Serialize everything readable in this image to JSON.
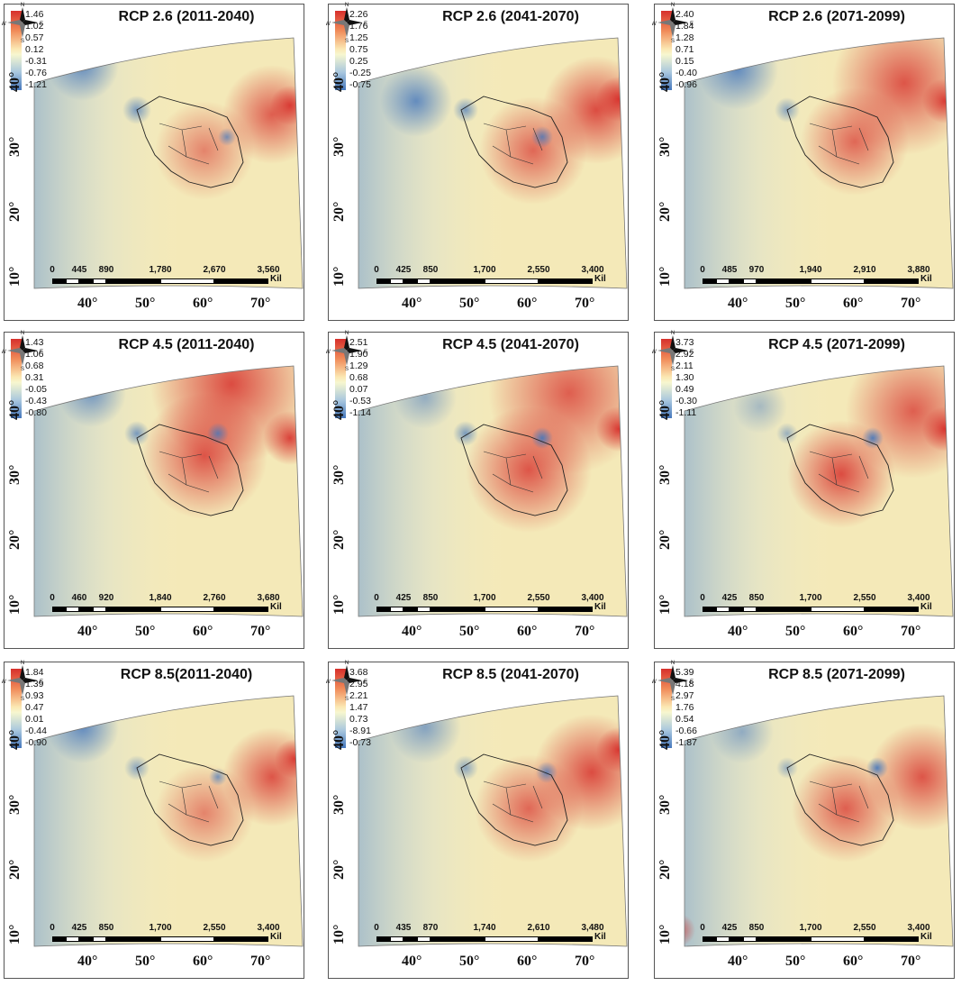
{
  "panels": [
    {
      "title": "RCP 2.6 (2011-2040)",
      "legend": [
        "1.46",
        "1.02",
        "0.57",
        "0.12",
        "-0.31",
        "-0.76",
        "-1.21"
      ],
      "scale": [
        "0",
        "445",
        "890",
        "1,780",
        "2,670",
        "3,560"
      ],
      "scale_unit": "Kil"
    },
    {
      "title": "RCP 2.6 (2041-2070)",
      "legend": [
        "2.26",
        "1.76",
        "1.25",
        "0.75",
        "0.25",
        "-0.25",
        "-0.75"
      ],
      "scale": [
        "0",
        "425",
        "850",
        "1,700",
        "2,550",
        "3,400"
      ],
      "scale_unit": "Kil"
    },
    {
      "title": "RCP 2.6 (2071-2099)",
      "legend": [
        "2.40",
        "1.84",
        "1.28",
        "0.71",
        "0.15",
        "-0.40",
        "-0.96"
      ],
      "scale": [
        "0",
        "485",
        "970",
        "1,940",
        "2,910",
        "3,880"
      ],
      "scale_unit": "Kil"
    },
    {
      "title": "RCP 4.5 (2011-2040)",
      "legend": [
        "1.43",
        "1.06",
        "0.68",
        "0.31",
        "-0.05",
        "-0.43",
        "-0.80"
      ],
      "scale": [
        "0",
        "460",
        "920",
        "1,840",
        "2,760",
        "3,680"
      ],
      "scale_unit": "Kil"
    },
    {
      "title": "RCP 4.5 (2041-2070)",
      "legend": [
        "2.51",
        "1.90",
        "1.29",
        "0.68",
        "0.07",
        "-0.53",
        "-1.14"
      ],
      "scale": [
        "0",
        "425",
        "850",
        "1,700",
        "2,550",
        "3,400"
      ],
      "scale_unit": "Kil"
    },
    {
      "title": "RCP 4.5 (2071-2099)",
      "legend": [
        "3.73",
        "2.92",
        "2.11",
        "1.30",
        "0.49",
        "-0.30",
        "-1.11"
      ],
      "scale": [
        "0",
        "425",
        "850",
        "1,700",
        "2,550",
        "3,400"
      ],
      "scale_unit": "Kil"
    },
    {
      "title": "RCP 8.5(2011-2040)",
      "legend": [
        "1.84",
        "1.39",
        "0.93",
        "0.47",
        "0.01",
        "-0.44",
        "-0.90"
      ],
      "scale": [
        "0",
        "425",
        "850",
        "1,700",
        "2,550",
        "3,400"
      ],
      "scale_unit": "Kil"
    },
    {
      "title": "RCP 8.5 (2041-2070)",
      "legend": [
        "3.68",
        "2.95",
        "2.21",
        "1.47",
        "0.73",
        "-8.91",
        "-0.73"
      ],
      "scale": [
        "0",
        "435",
        "870",
        "1,740",
        "2,610",
        "3,480"
      ],
      "scale_unit": "Kil"
    },
    {
      "title": "RCP 8.5 (2071-2099)",
      "legend": [
        "5.39",
        "4.18",
        "2.97",
        "1.76",
        "0.54",
        "-0.66",
        "-1.87"
      ],
      "scale": [
        "0",
        "425",
        "850",
        "1,700",
        "2,550",
        "3,400"
      ],
      "scale_unit": "Kil"
    }
  ],
  "lat_labels": [
    "40°",
    "30°",
    "20°",
    "10°"
  ],
  "lon_labels": [
    "40°",
    "50°",
    "60°",
    "70°"
  ],
  "compass": {
    "n": "N",
    "s": "S",
    "e": "E",
    "w": "W"
  },
  "colors": {
    "warm": "#d7302c",
    "neutral": "#f7f3c8",
    "cool": "#4577bc"
  }
}
